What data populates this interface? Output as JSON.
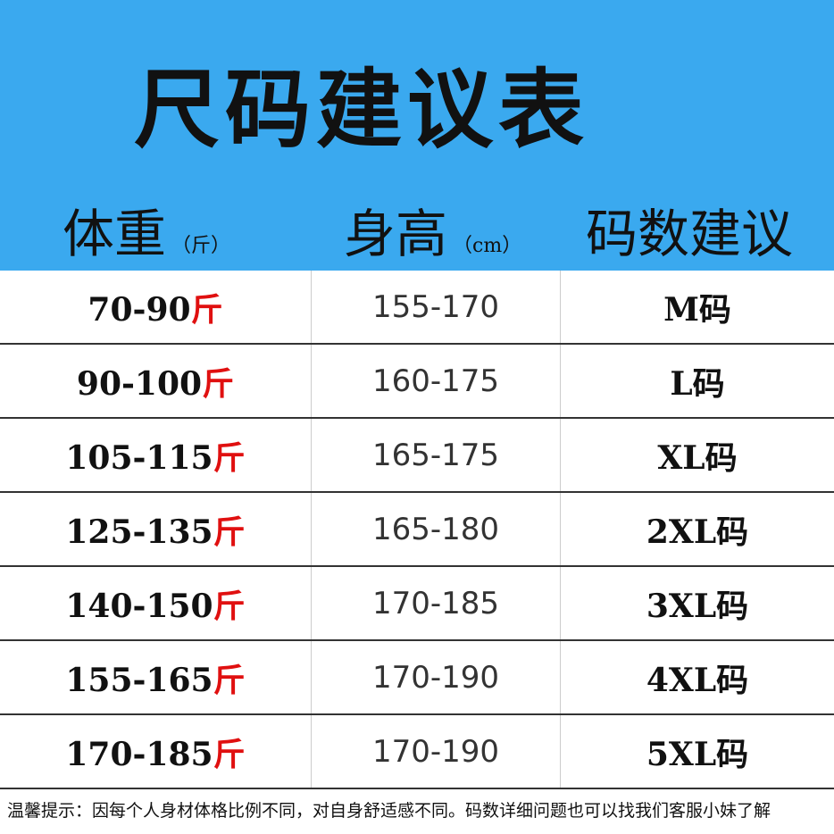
{
  "title": "尺码建议表",
  "headers": {
    "weight": "体重",
    "weight_unit": "（斤）",
    "height": "身高",
    "height_unit": "（cm）",
    "size": "码数建议"
  },
  "rows": [
    {
      "weight": "70-90",
      "weight_unit": "斤",
      "height": "155-170",
      "size": "M码"
    },
    {
      "weight": "90-100",
      "weight_unit": "斤",
      "height": "160-175",
      "size": "L码"
    },
    {
      "weight": "105-115",
      "weight_unit": "斤",
      "height": "165-175",
      "size": "XL码"
    },
    {
      "weight": "125-135",
      "weight_unit": "斤",
      "height": "165-180",
      "size": "2XL码"
    },
    {
      "weight": "140-150",
      "weight_unit": "斤",
      "height": "170-185",
      "size": "3XL码"
    },
    {
      "weight": "155-165",
      "weight_unit": "斤",
      "height": "170-190",
      "size": "4XL码"
    },
    {
      "weight": "170-185",
      "weight_unit": "斤",
      "height": "170-190",
      "size": "5XL码"
    }
  ],
  "footer": "温馨提示：因每个人身材体格比例不同，对自身舒适感不同。码数详细问题也可以找我们客服小妹了解",
  "colors": {
    "header_bg": "#3aa9ef",
    "unit_red": "#e01010"
  }
}
